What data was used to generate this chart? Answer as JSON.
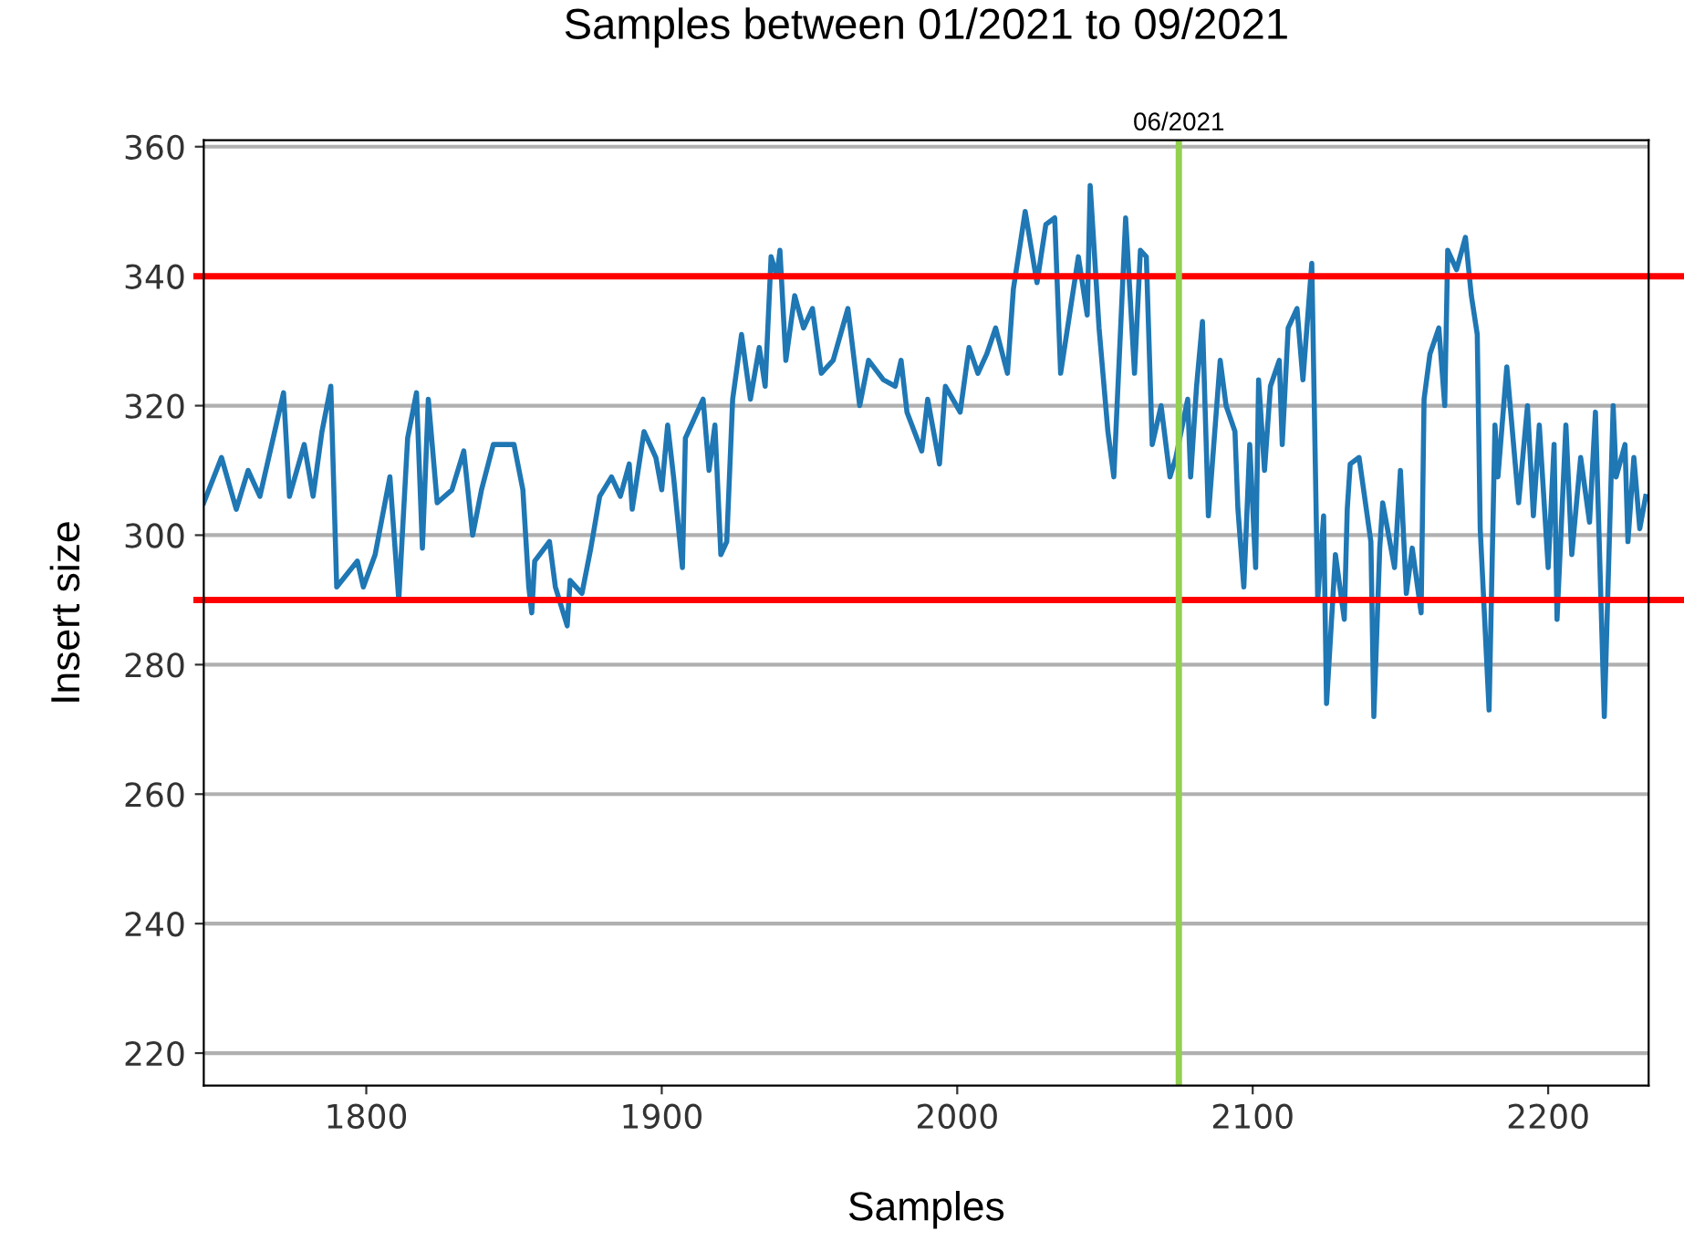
{
  "chart_data": {
    "type": "line",
    "title": "Samples between 01/2021 to 09/2021",
    "xlabel": "Samples",
    "ylabel": "Insert size",
    "xlim": [
      1745,
      2234
    ],
    "xticks": [
      1800,
      1900,
      2000,
      2100,
      2200
    ],
    "ylim": [
      215,
      361
    ],
    "yticks": [
      220,
      240,
      260,
      280,
      300,
      320,
      340,
      360
    ],
    "grid": "y",
    "series": [
      {
        "color": "#1f77b4",
        "x": [
          1745,
          1751,
          1756,
          1760,
          1764,
          1768,
          1772,
          1774,
          1779,
          1782,
          1785,
          1788,
          1790,
          1797,
          1799,
          1803,
          1808,
          1811,
          1814,
          1817,
          1819,
          1821,
          1824,
          1829,
          1833,
          1836,
          1839,
          1843,
          1850,
          1853,
          1855,
          1856,
          1857,
          1862,
          1864,
          1868,
          1869,
          1873,
          1876,
          1879,
          1883,
          1886,
          1889,
          1890,
          1894,
          1898,
          1900,
          1902,
          1904,
          1907,
          1908,
          1914,
          1916,
          1918,
          1920,
          1922,
          1924,
          1927,
          1930,
          1933,
          1935,
          1937,
          1939,
          1940,
          1942,
          1945,
          1948,
          1951,
          1954,
          1958,
          1963,
          1967,
          1970,
          1975,
          1979,
          1981,
          1983,
          1988,
          1990,
          1994,
          1996,
          2001,
          2004,
          2007,
          2010,
          2013,
          2017,
          2019,
          2023,
          2027,
          2030,
          2033,
          2035,
          2041,
          2044,
          2045,
          2048,
          2051,
          2053,
          2057,
          2060,
          2062,
          2064,
          2066,
          2069,
          2072,
          2074,
          2078,
          2079,
          2081,
          2083,
          2085,
          2087,
          2089,
          2091,
          2094,
          2095,
          2097,
          2099,
          2101,
          2102,
          2104,
          2106,
          2109,
          2110,
          2112,
          2115,
          2117,
          2120,
          2122,
          2124,
          2125,
          2128,
          2131,
          2132,
          2133,
          2136,
          2140,
          2141,
          2143,
          2144,
          2148,
          2150,
          2152,
          2154,
          2157,
          2158,
          2160,
          2163,
          2165,
          2166,
          2169,
          2172,
          2174,
          2176,
          2177,
          2180,
          2182,
          2183,
          2186,
          2190,
          2193,
          2195,
          2197,
          2200,
          2202,
          2203,
          2206,
          2208,
          2211,
          2214,
          2216,
          2219,
          2222,
          2223,
          2226,
          2227,
          2229,
          2231,
          2233
        ],
        "values": [
          305,
          312,
          304,
          310,
          306,
          314,
          322,
          306,
          314,
          306,
          316,
          323,
          292,
          296,
          292,
          297,
          309,
          290,
          315,
          322,
          298,
          321,
          305,
          307,
          313,
          300,
          307,
          314,
          314,
          307,
          292,
          288,
          296,
          299,
          292,
          286,
          293,
          291,
          298,
          306,
          309,
          306,
          311,
          304,
          316,
          312,
          307,
          317,
          309,
          295,
          315,
          321,
          310,
          317,
          297,
          299,
          321,
          331,
          321,
          329,
          323,
          343,
          340,
          344,
          327,
          337,
          332,
          335,
          325,
          327,
          335,
          320,
          327,
          324,
          323,
          327,
          319,
          313,
          321,
          311,
          323,
          319,
          329,
          325,
          328,
          332,
          325,
          338,
          350,
          339,
          348,
          349,
          325,
          343,
          334,
          354,
          332,
          316,
          309,
          349,
          325,
          344,
          343,
          314,
          320,
          309,
          312,
          321,
          309,
          323,
          333,
          303,
          315,
          327,
          320,
          316,
          304,
          292,
          314,
          295,
          324,
          310,
          323,
          327,
          314,
          332,
          335,
          324,
          342,
          290,
          303,
          274,
          297,
          287,
          304,
          311,
          312,
          299,
          272,
          298,
          305,
          295,
          310,
          291,
          298,
          288,
          321,
          328,
          332,
          320,
          344,
          341,
          346,
          337,
          331,
          301,
          273,
          317,
          309,
          326,
          305,
          320,
          303,
          317,
          295,
          314,
          287,
          317,
          297,
          312,
          302,
          319,
          272,
          320,
          309,
          314,
          299,
          312,
          301,
          306
        ]
      }
    ],
    "ref_lines": [
      {
        "axis": "y",
        "value": 340,
        "color": "#ff0000"
      },
      {
        "axis": "y",
        "value": 290,
        "color": "#ff0000"
      },
      {
        "axis": "x",
        "value": 2075,
        "color": "#92d050"
      }
    ],
    "annotations": [
      "06/2021"
    ]
  }
}
